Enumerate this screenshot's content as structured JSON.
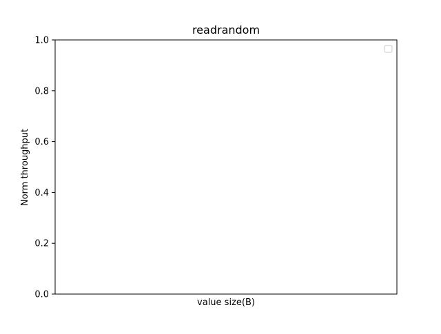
{
  "chart_data": {
    "type": "line",
    "title": "readrandom",
    "xlabel": "value size(B)",
    "ylabel": "Norm throughput",
    "ylim": [
      0,
      1
    ],
    "yticks": [
      0.0,
      0.2,
      0.4,
      0.6,
      0.8,
      1.0
    ],
    "ytick_labels": [
      "0.0",
      "0.2",
      "0.4",
      "0.6",
      "0.8",
      "1.0"
    ],
    "xticks": [],
    "series": [],
    "grid": false,
    "legend": {
      "placement": "top-right",
      "entries": []
    }
  }
}
